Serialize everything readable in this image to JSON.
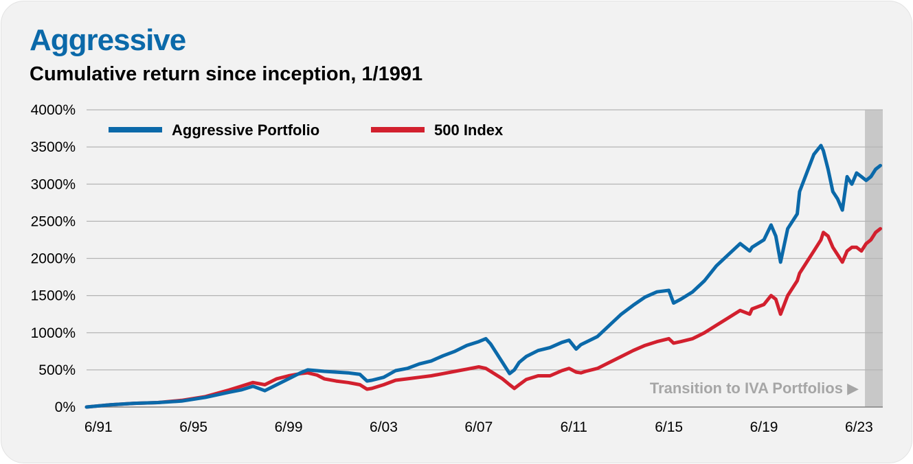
{
  "header": {
    "title": "Aggressive",
    "subtitle": "Cumulative return since inception, 1/1991"
  },
  "colors": {
    "title": "#0b69a9",
    "aggressive": "#0b69a9",
    "index": "#d2202e",
    "shade": "#c8c8c8",
    "grid": "#b4b4b4",
    "note": "#a6a6a6"
  },
  "chart_data": {
    "type": "line",
    "y_unit": "%",
    "ylim": [
      0,
      4000
    ],
    "xlim": [
      1991.0,
      2024.5
    ],
    "y_ticks": [
      0,
      500,
      1000,
      1500,
      2000,
      2500,
      3000,
      3500,
      4000
    ],
    "y_tick_labels": [
      "0%",
      "500%",
      "1000%",
      "1500%",
      "2000%",
      "2500%",
      "3000%",
      "3500%",
      "4000%"
    ],
    "x_ticks": [
      1991.5,
      1995.5,
      1999.5,
      2003.5,
      2007.5,
      2011.5,
      2015.5,
      2019.5,
      2023.5
    ],
    "x_tick_labels": [
      "6/91",
      "6/95",
      "6/99",
      "6/03",
      "6/07",
      "6/11",
      "6/15",
      "6/19",
      "6/23"
    ],
    "grid": "horizontal",
    "legend_position": "top-left",
    "shaded_region": {
      "x_start": 2023.75,
      "x_end": 2024.5,
      "annotation": "Transition to IVA Portfolios ▶"
    },
    "series": [
      {
        "name": "Aggressive Portfolio",
        "color": "#0b69a9",
        "x": [
          1991.0,
          1992.0,
          1993.0,
          1994.0,
          1995.0,
          1996.0,
          1997.0,
          1997.5,
          1998.0,
          1998.5,
          1999.0,
          1999.5,
          2000.0,
          2000.3,
          2000.7,
          2001.0,
          2001.5,
          2002.0,
          2002.5,
          2002.8,
          2003.0,
          2003.5,
          2004.0,
          2004.5,
          2005.0,
          2005.5,
          2006.0,
          2006.5,
          2007.0,
          2007.5,
          2007.8,
          2008.0,
          2008.5,
          2008.8,
          2009.0,
          2009.2,
          2009.5,
          2010.0,
          2010.5,
          2011.0,
          2011.3,
          2011.6,
          2011.8,
          2012.0,
          2012.5,
          2013.0,
          2013.5,
          2014.0,
          2014.5,
          2015.0,
          2015.5,
          2015.7,
          2016.0,
          2016.5,
          2017.0,
          2017.5,
          2018.0,
          2018.5,
          2018.9,
          2019.0,
          2019.5,
          2019.8,
          2020.0,
          2020.2,
          2020.5,
          2020.9,
          2021.0,
          2021.3,
          2021.6,
          2021.9,
          2022.0,
          2022.2,
          2022.4,
          2022.6,
          2022.8,
          2023.0,
          2023.2,
          2023.4,
          2023.6,
          2023.8,
          2024.0,
          2024.2,
          2024.4
        ],
        "values": [
          0,
          30,
          50,
          60,
          80,
          130,
          200,
          230,
          280,
          220,
          300,
          380,
          460,
          500,
          490,
          480,
          470,
          460,
          440,
          350,
          360,
          400,
          490,
          520,
          580,
          620,
          690,
          750,
          830,
          880,
          920,
          850,
          600,
          450,
          500,
          600,
          680,
          760,
          800,
          870,
          900,
          780,
          840,
          870,
          950,
          1100,
          1250,
          1370,
          1480,
          1550,
          1570,
          1400,
          1450,
          1550,
          1700,
          1900,
          2050,
          2200,
          2100,
          2150,
          2250,
          2450,
          2300,
          1950,
          2400,
          2600,
          2900,
          3150,
          3400,
          3520,
          3450,
          3200,
          2900,
          2800,
          2650,
          3100,
          3000,
          3150,
          3100,
          3050,
          3100,
          3200,
          3250
        ]
      },
      {
        "name": "500 Index",
        "color": "#d2202e",
        "x": [
          1991.0,
          1992.0,
          1993.0,
          1994.0,
          1995.0,
          1996.0,
          1997.0,
          1997.5,
          1998.0,
          1998.5,
          1999.0,
          1999.5,
          2000.0,
          2000.3,
          2000.7,
          2001.0,
          2001.5,
          2002.0,
          2002.5,
          2002.8,
          2003.0,
          2003.5,
          2004.0,
          2004.5,
          2005.0,
          2005.5,
          2006.0,
          2006.5,
          2007.0,
          2007.5,
          2007.8,
          2008.0,
          2008.5,
          2008.8,
          2009.0,
          2009.2,
          2009.5,
          2010.0,
          2010.5,
          2011.0,
          2011.3,
          2011.6,
          2011.8,
          2012.0,
          2012.5,
          2013.0,
          2013.5,
          2014.0,
          2014.5,
          2015.0,
          2015.5,
          2015.7,
          2016.0,
          2016.5,
          2017.0,
          2017.5,
          2018.0,
          2018.5,
          2018.9,
          2019.0,
          2019.5,
          2019.8,
          2020.0,
          2020.2,
          2020.5,
          2020.9,
          2021.0,
          2021.3,
          2021.6,
          2021.9,
          2022.0,
          2022.2,
          2022.4,
          2022.6,
          2022.8,
          2023.0,
          2023.2,
          2023.4,
          2023.6,
          2023.8,
          2024.0,
          2024.2,
          2024.4
        ],
        "values": [
          0,
          30,
          50,
          60,
          90,
          140,
          230,
          280,
          330,
          300,
          380,
          420,
          450,
          460,
          430,
          380,
          350,
          330,
          300,
          240,
          250,
          300,
          360,
          380,
          400,
          420,
          450,
          480,
          510,
          540,
          520,
          480,
          380,
          300,
          250,
          300,
          370,
          420,
          420,
          490,
          520,
          470,
          460,
          480,
          520,
          600,
          680,
          760,
          830,
          880,
          920,
          860,
          880,
          920,
          1000,
          1100,
          1200,
          1300,
          1250,
          1320,
          1380,
          1500,
          1450,
          1250,
          1500,
          1700,
          1800,
          1950,
          2100,
          2250,
          2350,
          2300,
          2150,
          2050,
          1950,
          2100,
          2150,
          2150,
          2100,
          2200,
          2250,
          2350,
          2400
        ]
      }
    ]
  }
}
